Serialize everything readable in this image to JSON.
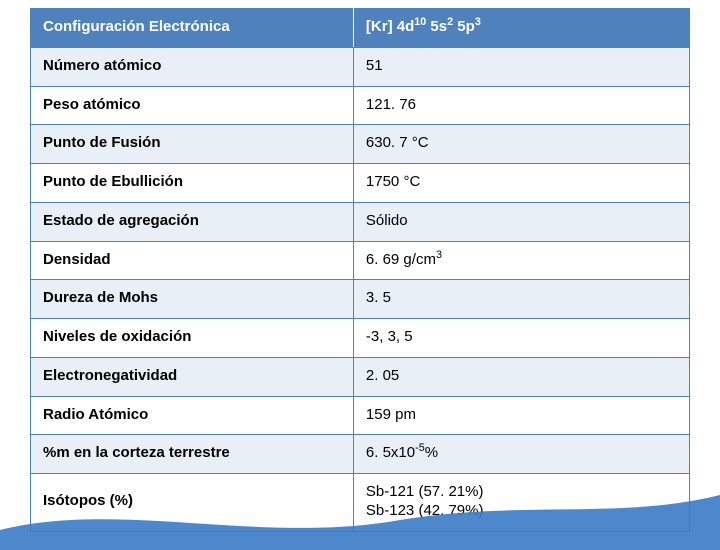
{
  "table": {
    "header_bg": "#4f81bd",
    "header_fg": "#ffffff",
    "border_color": "#4f81bd",
    "alt_row_bg": "#e9eff7",
    "font_size_pt": 11,
    "columns": [
      "property",
      "value"
    ],
    "col_widths_pct": [
      49,
      51
    ],
    "header": {
      "property": "Configuración Electrónica",
      "value_html": "[Kr] 4d<sup>10</sup> 5s<sup>2</sup> 5p<sup>3</sup>",
      "value_plain": "[Kr] 4d10 5s2 5p3"
    },
    "rows": [
      {
        "property": "Número atómico",
        "value_html": "51",
        "alt": true
      },
      {
        "property": "Peso atómico",
        "value_html": "121. 76",
        "alt": false
      },
      {
        "property": "Punto de Fusión",
        "value_html": "630. 7 °C",
        "alt": true
      },
      {
        "property": "Punto de Ebullición",
        "value_html": "1750 °C",
        "alt": false
      },
      {
        "property": "Estado de agregación",
        "value_html": "Sólido",
        "alt": true
      },
      {
        "property": "Densidad",
        "value_html": "6. 69 g/cm<sup>3</sup>",
        "alt": false
      },
      {
        "property": "Dureza de Mohs",
        "value_html": "3. 5",
        "alt": true
      },
      {
        "property": "Niveles de oxidación",
        "value_html": "-3, 3, 5",
        "alt": false
      },
      {
        "property": "Electronegatividad",
        "value_html": "2. 05",
        "alt": true
      },
      {
        "property": "Radio Atómico",
        "value_html": "159 pm",
        "alt": false
      },
      {
        "property": "%m en la corteza terrestre",
        "value_html": "6. 5x10<sup>-5</sup>%",
        "alt": true
      },
      {
        "property": "Isótopos (%)",
        "value_html": "Sb-121 (57. 21%)<br>Sb-123 (42. 79%)",
        "alt": false
      }
    ]
  },
  "decoration": {
    "wave_color": "#3a7bc8",
    "wave_opacity": 0.9
  }
}
